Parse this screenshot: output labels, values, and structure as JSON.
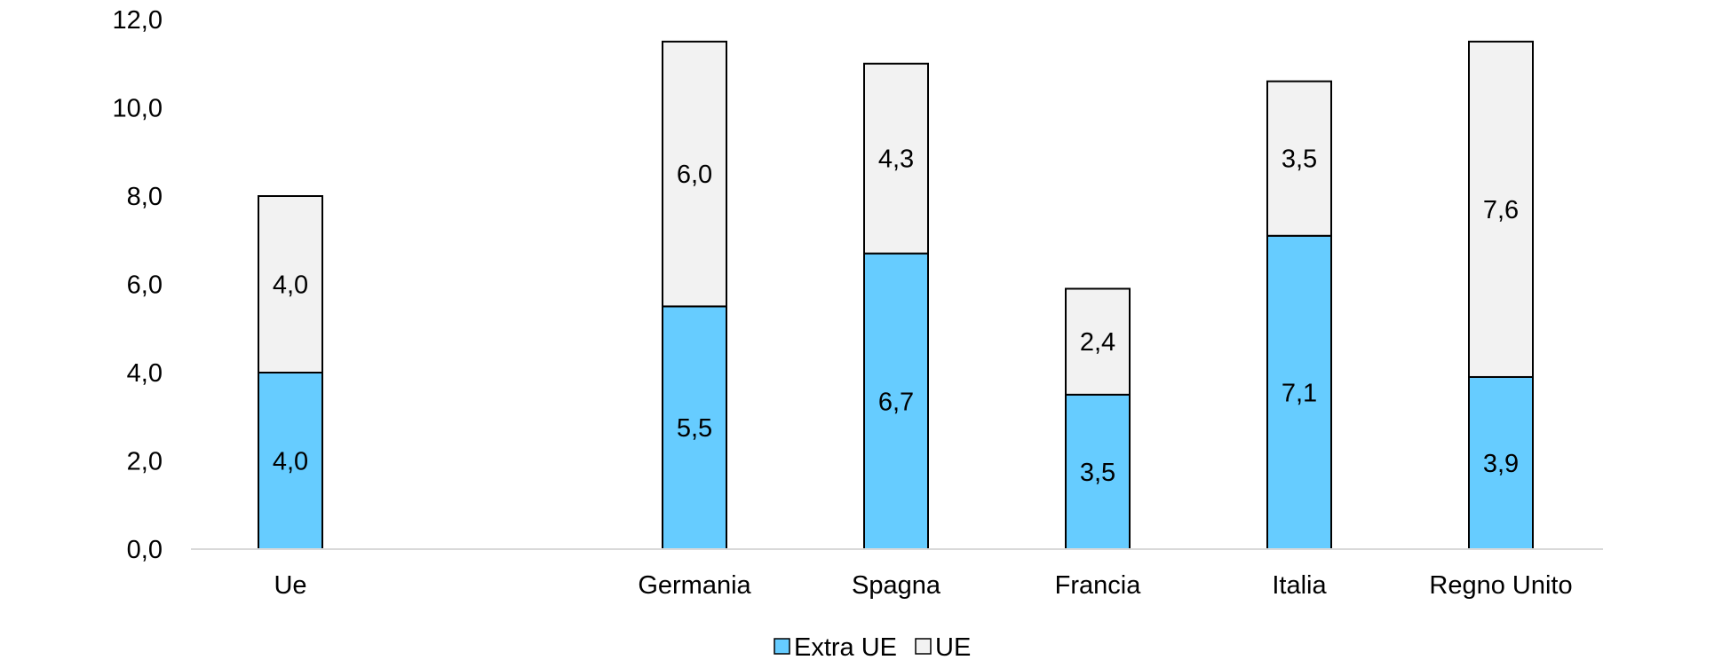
{
  "chart_data": {
    "type": "bar",
    "stacked": true,
    "categories": [
      "Ue",
      "",
      "Germania",
      "Spagna",
      "Francia",
      "Italia",
      "Regno Unito"
    ],
    "series": [
      {
        "name": "Extra UE",
        "values": [
          4.0,
          null,
          5.5,
          6.7,
          3.5,
          7.1,
          3.9
        ],
        "labels": [
          "4,0",
          "",
          "5,5",
          "6,7",
          "3,5",
          "7,1",
          "3,9"
        ],
        "color": "#66ccff"
      },
      {
        "name": "UE",
        "values": [
          4.0,
          null,
          6.0,
          4.3,
          2.4,
          3.5,
          7.6
        ],
        "labels": [
          "4,0",
          "",
          "6,0",
          "4,3",
          "2,4",
          "3,5",
          "7,6"
        ],
        "color": "#f2f2f2"
      }
    ],
    "ylim": [
      0,
      12
    ],
    "yticks": [
      0,
      2,
      4,
      6,
      8,
      10,
      12
    ],
    "ytick_labels": [
      "0,0",
      "2,0",
      "4,0",
      "6,0",
      "8,0",
      "10,0",
      "12,0"
    ],
    "title": "",
    "xlabel": "",
    "ylabel": "",
    "grid": false,
    "legend_position": "bottom-center",
    "axis_color": "#d9d9d9",
    "bar_outline_color": "#000000"
  }
}
